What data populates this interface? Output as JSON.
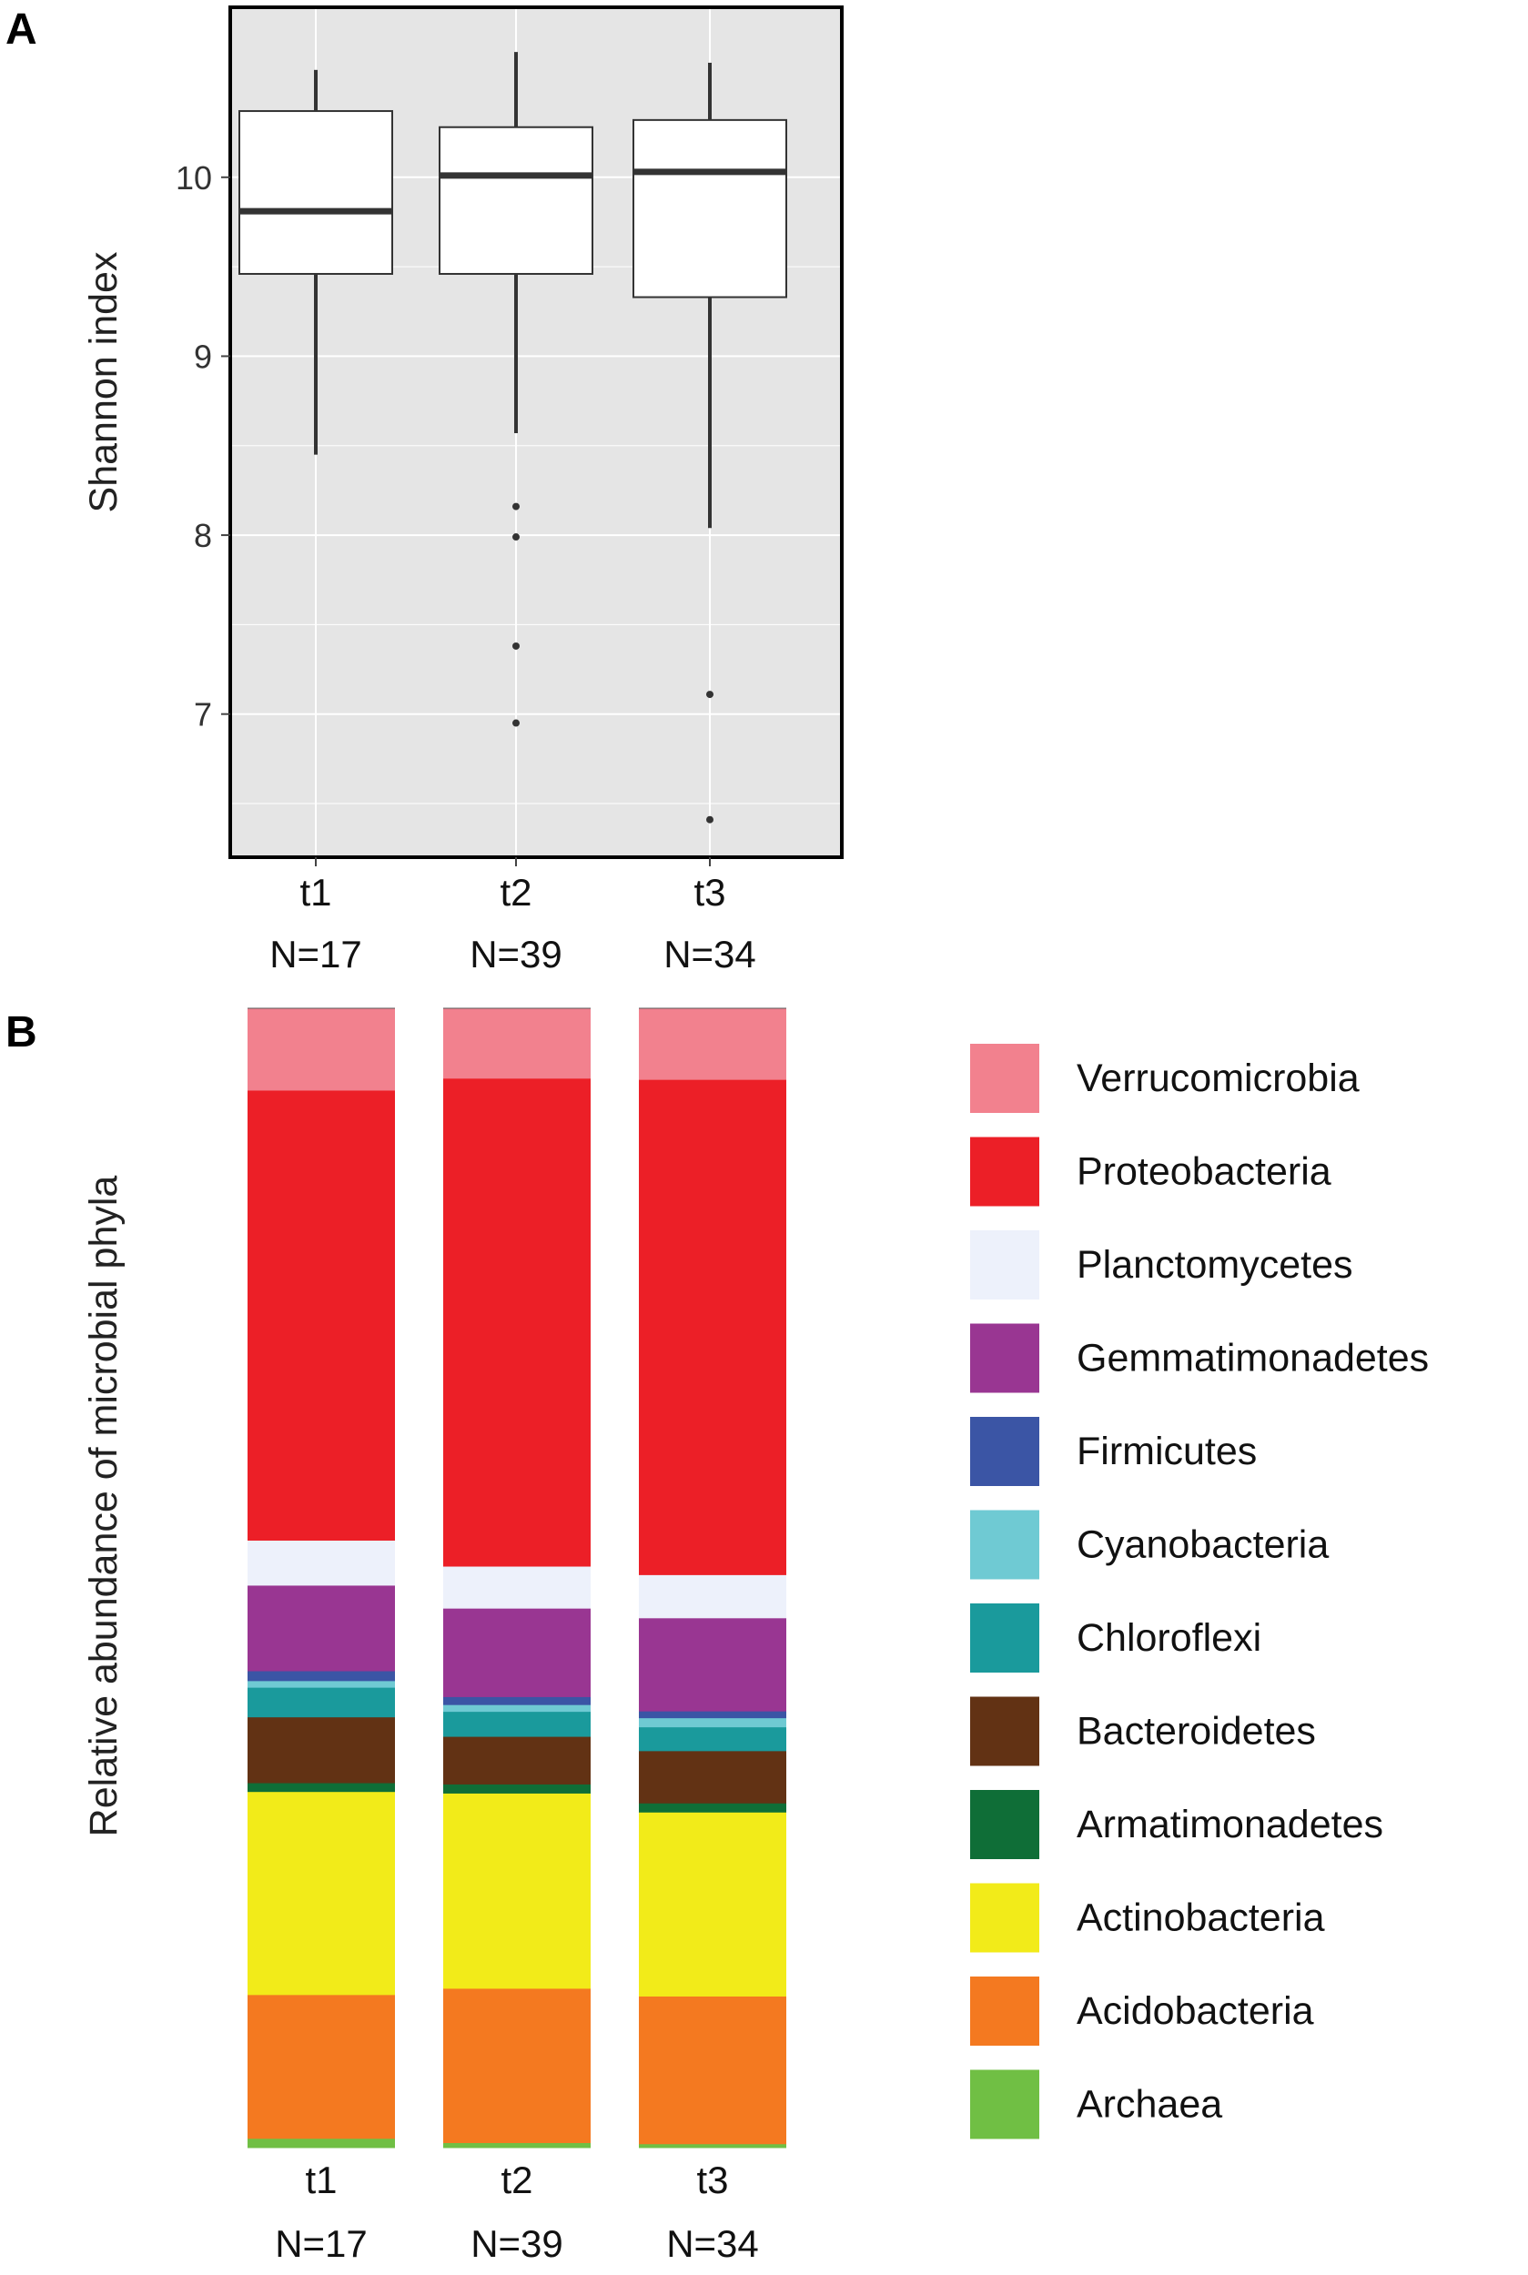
{
  "panels": {
    "a_label": "A",
    "b_label": "B"
  },
  "chart_data": [
    {
      "type": "box",
      "panel": "A",
      "ylabel": "Shannon index",
      "categories": [
        "t1",
        "t2",
        "t3"
      ],
      "category_labels": [
        {
          "group": "t1",
          "n": "N=17"
        },
        {
          "group": "t2",
          "n": "N=39"
        },
        {
          "group": "t3",
          "n": "N=34"
        }
      ],
      "ylim": [
        6.2,
        10.95
      ],
      "yticks": [
        7,
        8,
        9,
        10
      ],
      "ytick_labels": [
        "7",
        "8",
        "9",
        "10"
      ],
      "grid": true,
      "colors": {
        "panel_bg": "#e5e5e5",
        "grid": "#ffffff",
        "box_fill": "#ffffff",
        "line": "#333333"
      },
      "boxes": [
        {
          "name": "t1",
          "whisker_low": 8.45,
          "q1": 9.46,
          "median": 9.81,
          "q3": 10.37,
          "whisker_high": 10.6,
          "outliers": []
        },
        {
          "name": "t2",
          "whisker_low": 8.57,
          "q1": 9.46,
          "median": 10.01,
          "q3": 10.28,
          "whisker_high": 10.7,
          "outliers": [
            8.16,
            7.99,
            7.38,
            6.95
          ]
        },
        {
          "name": "t3",
          "whisker_low": 8.04,
          "q1": 9.33,
          "median": 10.03,
          "q3": 10.32,
          "whisker_high": 10.64,
          "outliers": [
            7.11,
            6.41
          ]
        }
      ]
    },
    {
      "type": "stacked-bar",
      "panel": "B",
      "ylabel": "Relative abundance of microbial phyla",
      "categories": [
        "t1",
        "t2",
        "t3"
      ],
      "category_labels": [
        {
          "group": "t1",
          "n": "N=17"
        },
        {
          "group": "t2",
          "n": "N=39"
        },
        {
          "group": "t3",
          "n": "N=34"
        }
      ],
      "legend_position": "right",
      "series": [
        {
          "name": "Verrucomicrobia",
          "color": "#f2818e",
          "values": [
            7.5,
            6.2,
            6.3
          ]
        },
        {
          "name": "Proteobacteria",
          "color": "#ec1f27",
          "values": [
            41.0,
            43.0,
            43.6
          ]
        },
        {
          "name": "Planctomycetes",
          "color": "#edf1fb",
          "values": [
            4.1,
            3.7,
            3.8
          ]
        },
        {
          "name": "Gemmatimonadetes",
          "color": "#993692",
          "values": [
            7.8,
            7.8,
            8.2
          ]
        },
        {
          "name": "Firmicutes",
          "color": "#3b55a5",
          "values": [
            0.9,
            0.7,
            0.6
          ]
        },
        {
          "name": "Cyanobacteria",
          "color": "#6fcad3",
          "values": [
            0.6,
            0.6,
            0.8
          ]
        },
        {
          "name": "Chloroflexi",
          "color": "#1a9a9c",
          "values": [
            2.7,
            2.2,
            2.1
          ]
        },
        {
          "name": "Bacteroidetes",
          "color": "#623214",
          "values": [
            6.0,
            4.2,
            4.6
          ]
        },
        {
          "name": "Armatimonadetes",
          "color": "#0f6e37",
          "values": [
            0.8,
            0.8,
            0.8
          ]
        },
        {
          "name": "Actinobacteria",
          "color": "#f2eb19",
          "values": [
            18.5,
            17.2,
            16.2
          ]
        },
        {
          "name": "Acidobacteria",
          "color": "#f47920",
          "values": [
            13.1,
            13.6,
            13.0
          ]
        },
        {
          "name": "Archaea",
          "color": "#70bf44",
          "values": [
            0.8,
            0.4,
            0.3
          ]
        }
      ]
    }
  ]
}
